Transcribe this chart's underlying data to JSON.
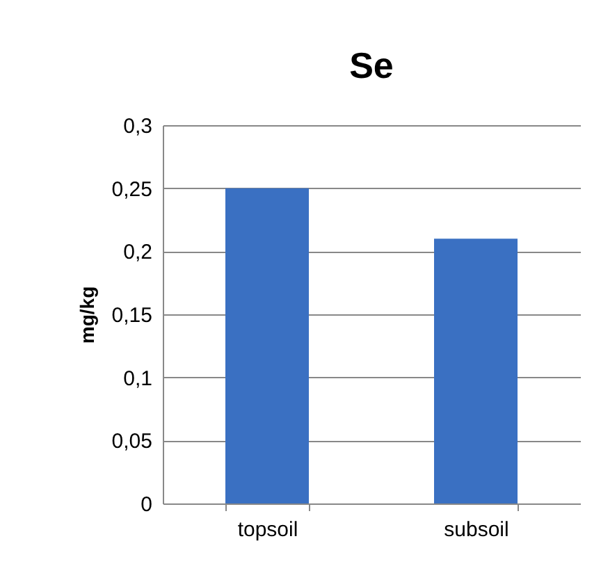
{
  "chart_data": {
    "type": "bar",
    "title": "Se",
    "ylabel": "mg/kg",
    "categories": [
      "topsoil",
      "subsoil"
    ],
    "values": [
      0.25,
      0.21
    ],
    "color": "#3a70c2",
    "ylim": [
      0,
      0.3
    ],
    "yticks": [
      0,
      {
        "value": 0.05,
        "label": "0,05"
      },
      {
        "value": 0.1,
        "label": "0,1"
      },
      {
        "value": 0.15,
        "label": "0,15"
      },
      {
        "value": 0.2,
        "label": "0,2"
      },
      {
        "value": 0.25,
        "label": "0,25"
      },
      {
        "value": 0.3,
        "label": "0,3"
      }
    ],
    "grid": "y"
  }
}
